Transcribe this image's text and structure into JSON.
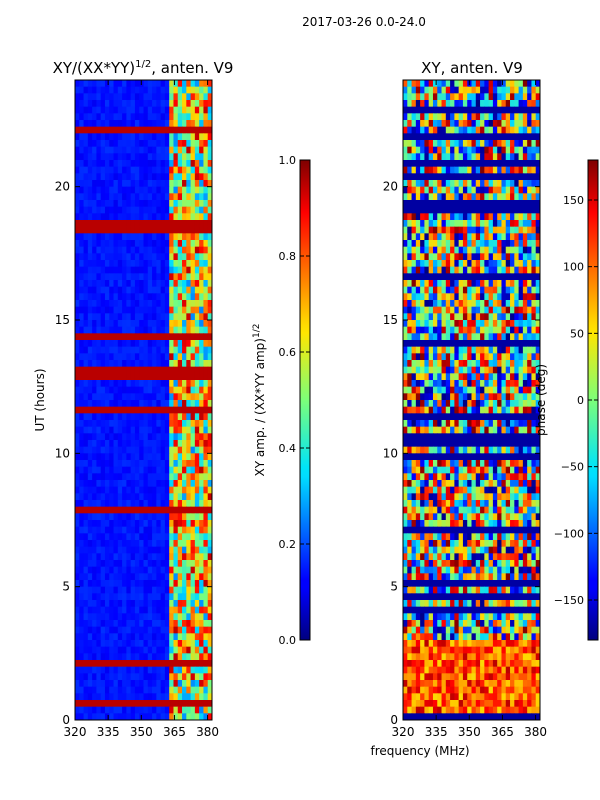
{
  "suptitle": "2017-03-26 0.0-24.0",
  "chart_data": [
    {
      "type": "heatmap",
      "title": "XY/(XX*YY)^1/2, anten. V9",
      "title_main": "XY/(XX*YY)",
      "title_exp": "1/2",
      "title_rest": ", anten. V9",
      "xlabel": "",
      "ylabel": "UT (hours)",
      "xlim": [
        320,
        382
      ],
      "ylim": [
        0,
        24
      ],
      "xticks": [
        "320",
        "335",
        "350",
        "365",
        "380"
      ],
      "xtick_values": [
        320,
        335,
        350,
        365,
        380
      ],
      "yticks": [
        "0",
        "5",
        "10",
        "15",
        "20"
      ],
      "ytick_values": [
        0,
        5,
        10,
        15,
        20
      ],
      "colorbar": {
        "label": "XY amp. / (XX*YY amp)^1/2",
        "label_main": "XY amp. / (XX*YY amp)",
        "label_exp": "1/2",
        "range": [
          0.0,
          1.0
        ],
        "ticks": [
          "0.0",
          "0.2",
          "0.4",
          "0.6",
          "0.8",
          "1.0"
        ],
        "tick_values": [
          0.0,
          0.2,
          0.4,
          0.6,
          0.8,
          1.0
        ]
      }
    },
    {
      "type": "heatmap",
      "title": "XY, anten. V9",
      "xlabel": "frequency (MHz)",
      "ylabel": "",
      "xlim": [
        320,
        382
      ],
      "ylim": [
        0,
        24
      ],
      "xticks": [
        "320",
        "335",
        "350",
        "365",
        "380"
      ],
      "xtick_values": [
        320,
        335,
        350,
        365,
        380
      ],
      "yticks": [
        "0",
        "5",
        "10",
        "15",
        "20"
      ],
      "ytick_values": [
        0,
        5,
        10,
        15,
        20
      ],
      "colorbar": {
        "label": "phase (deg)",
        "range": [
          -180,
          180
        ],
        "ticks": [
          "−150",
          "−100",
          "−50",
          "0",
          "50",
          "100",
          "150"
        ],
        "tick_values": [
          -150,
          -100,
          -50,
          0,
          50,
          100,
          150
        ]
      }
    }
  ]
}
